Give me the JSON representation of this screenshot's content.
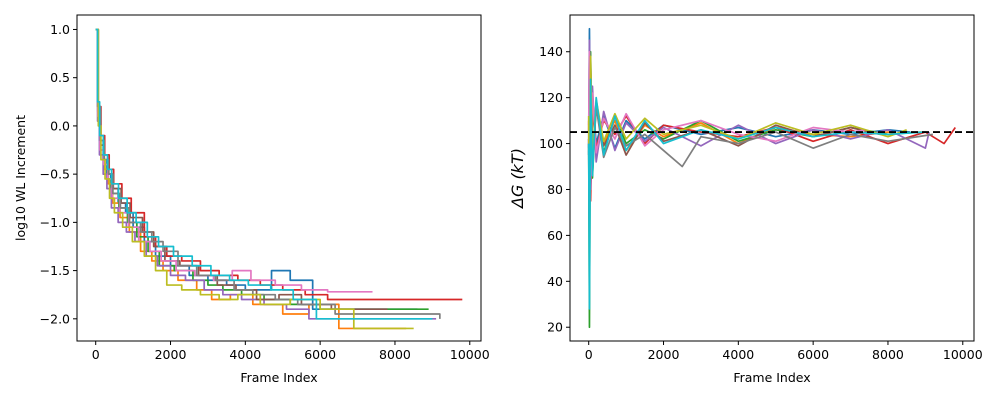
{
  "colors": [
    "#1f77b4",
    "#ff7f0e",
    "#2ca02c",
    "#d62728",
    "#9467bd",
    "#8c564b",
    "#e377c2",
    "#7f7f7f",
    "#bcbd22",
    "#17becf"
  ],
  "chart_data": [
    {
      "type": "line",
      "title": "",
      "xlabel": "Frame Index",
      "ylabel": "log10 WL Increment",
      "xlim": [
        -500,
        10300
      ],
      "ylim": [
        -2.23,
        1.15
      ],
      "xticks": [
        0,
        2000,
        4000,
        6000,
        8000,
        10000
      ],
      "yticks": [
        -2.0,
        -1.5,
        -1.0,
        -0.5,
        0.0,
        0.5,
        1.0
      ],
      "xtick_labels": [
        "0",
        "2000",
        "4000",
        "6000",
        "8000",
        "10000"
      ],
      "ytick_labels": [
        "−2.0",
        "−1.5",
        "−1.0",
        "−0.5",
        "0.0",
        "0.5",
        "1.0"
      ],
      "grid": false,
      "legend": "none",
      "step": true,
      "series": [
        {
          "x": [
            0,
            50,
            100,
            200,
            300,
            400,
            600,
            800,
            1000,
            1300,
            1600,
            2000,
            2500,
            3000,
            3500,
            4000,
            4700,
            5200,
            5800,
            8600
          ],
          "y": [
            1.0,
            0.2,
            -0.15,
            -0.35,
            -0.5,
            -0.65,
            -0.8,
            -0.9,
            -1.05,
            -1.2,
            -1.35,
            -1.45,
            -1.55,
            -1.6,
            -1.65,
            -1.7,
            -1.5,
            -1.6,
            -1.9,
            -1.9
          ]
        },
        {
          "x": [
            0,
            60,
            120,
            220,
            330,
            450,
            650,
            900,
            1200,
            1500,
            1800,
            2200,
            2700,
            3100,
            3600,
            4200,
            5000,
            5700,
            6500,
            8300
          ],
          "y": [
            1.0,
            0.1,
            -0.25,
            -0.45,
            -0.6,
            -0.8,
            -0.95,
            -1.1,
            -1.3,
            -1.4,
            -1.5,
            -1.6,
            -1.7,
            -1.8,
            -1.75,
            -1.85,
            -1.95,
            -1.85,
            -2.1,
            -2.1
          ]
        },
        {
          "x": [
            0,
            55,
            110,
            210,
            320,
            430,
            620,
            850,
            1100,
            1400,
            1700,
            2100,
            2600,
            3000,
            3400,
            3900,
            4500,
            5200,
            6000,
            8900
          ],
          "y": [
            1.0,
            0.15,
            -0.2,
            -0.4,
            -0.55,
            -0.7,
            -0.85,
            -1.0,
            -1.15,
            -1.3,
            -1.45,
            -1.5,
            -1.6,
            -1.65,
            -1.7,
            -1.75,
            -1.8,
            -1.85,
            -1.9,
            -1.9
          ]
        },
        {
          "x": [
            0,
            70,
            140,
            240,
            360,
            480,
            700,
            950,
            1300,
            1600,
            1900,
            2300,
            2800,
            3300,
            3800,
            4400,
            5000,
            5600,
            6200,
            9800
          ],
          "y": [
            1.0,
            0.2,
            -0.1,
            -0.3,
            -0.45,
            -0.6,
            -0.75,
            -0.9,
            -1.15,
            -1.25,
            -1.35,
            -1.4,
            -1.5,
            -1.55,
            -1.6,
            -1.65,
            -1.7,
            -1.75,
            -1.8,
            -1.8
          ]
        },
        {
          "x": [
            0,
            50,
            100,
            200,
            300,
            420,
            600,
            820,
            1050,
            1350,
            1650,
            2000,
            2400,
            2900,
            3400,
            3900,
            4500,
            5100,
            5700,
            9100
          ],
          "y": [
            1.0,
            0.05,
            -0.3,
            -0.5,
            -0.65,
            -0.85,
            -1.0,
            -1.1,
            -1.2,
            -1.35,
            -1.45,
            -1.55,
            -1.6,
            -1.7,
            -1.75,
            -1.8,
            -1.85,
            -1.9,
            -2.0,
            -2.0
          ]
        },
        {
          "x": [
            0,
            65,
            130,
            230,
            350,
            470,
            680,
            920,
            1250,
            1550,
            1850,
            2250,
            2750,
            3250,
            3750,
            4300,
            4900,
            5500,
            6300,
            7800
          ],
          "y": [
            1.0,
            0.15,
            -0.2,
            -0.35,
            -0.5,
            -0.65,
            -0.8,
            -0.95,
            -1.1,
            -1.25,
            -1.4,
            -1.45,
            -1.55,
            -1.65,
            -1.7,
            -1.8,
            -1.75,
            -1.85,
            -1.9,
            -1.9
          ]
        },
        {
          "x": [
            0,
            55,
            115,
            215,
            325,
            440,
            640,
            880,
            1150,
            1450,
            1750,
            2150,
            2650,
            3150,
            3650,
            4150,
            4800,
            5500,
            6200,
            7400
          ],
          "y": [
            1.0,
            0.1,
            -0.25,
            -0.4,
            -0.55,
            -0.75,
            -0.9,
            -1.05,
            -1.2,
            -1.3,
            -1.4,
            -1.5,
            -1.55,
            -1.6,
            -1.5,
            -1.6,
            -1.65,
            -1.7,
            -1.72,
            -1.72
          ]
        },
        {
          "x": [
            0,
            60,
            125,
            225,
            340,
            460,
            660,
            900,
            1200,
            1500,
            1800,
            2200,
            2700,
            3200,
            3700,
            4200,
            4800,
            5400,
            6400,
            9200
          ],
          "y": [
            1.0,
            0.2,
            -0.15,
            -0.35,
            -0.5,
            -0.7,
            -0.85,
            -1.0,
            -1.1,
            -1.2,
            -1.3,
            -1.45,
            -1.55,
            -1.6,
            -1.7,
            -1.75,
            -1.8,
            -1.85,
            -1.95,
            -2.0
          ]
        },
        {
          "x": [
            0,
            70,
            140,
            250,
            370,
            500,
            720,
            980,
            1300,
            1600,
            1900,
            2300,
            2800,
            3300,
            3800,
            4400,
            5200,
            6000,
            6900,
            8500
          ],
          "y": [
            1.0,
            0.0,
            -0.35,
            -0.55,
            -0.75,
            -0.9,
            -1.05,
            -1.2,
            -1.35,
            -1.5,
            -1.65,
            -1.7,
            -1.75,
            -1.8,
            -1.75,
            -1.85,
            -1.8,
            -1.9,
            -2.1,
            -2.1
          ]
        },
        {
          "x": [
            0,
            50,
            105,
            205,
            315,
            425,
            610,
            840,
            1080,
            1380,
            1680,
            2080,
            2580,
            3080,
            3580,
            4080,
            4680,
            5280,
            5900,
            9000
          ],
          "y": [
            1.0,
            0.25,
            -0.1,
            -0.3,
            -0.45,
            -0.6,
            -0.75,
            -0.9,
            -1.0,
            -1.15,
            -1.25,
            -1.35,
            -1.45,
            -1.55,
            -1.6,
            -1.65,
            -1.7,
            -1.8,
            -2.0,
            -2.0
          ]
        }
      ]
    },
    {
      "type": "line",
      "title": "",
      "xlabel": "Frame Index",
      "ylabel": "ΔG (kT)",
      "xlim": [
        -500,
        10300
      ],
      "ylim": [
        14,
        156
      ],
      "xticks": [
        0,
        2000,
        4000,
        6000,
        8000,
        10000
      ],
      "yticks": [
        20,
        40,
        60,
        80,
        100,
        120,
        140
      ],
      "xtick_labels": [
        "0",
        "2000",
        "4000",
        "6000",
        "8000",
        "10000"
      ],
      "ytick_labels": [
        "20",
        "40",
        "60",
        "80",
        "100",
        "120",
        "140"
      ],
      "grid": false,
      "legend": "none",
      "reference_line": {
        "y": 105,
        "style": "dashed",
        "color": "#000000"
      },
      "series": [
        {
          "x": [
            0,
            20,
            50,
            100,
            200,
            400,
            700,
            1000,
            1500,
            2000,
            3000,
            4000,
            5000,
            6000,
            7000,
            8000,
            8600
          ],
          "y": [
            95,
            150,
            90,
            120,
            100,
            112,
            98,
            110,
            102,
            108,
            104,
            107,
            103,
            106,
            104,
            106,
            105
          ]
        },
        {
          "x": [
            0,
            20,
            50,
            100,
            200,
            400,
            700,
            1000,
            1500,
            2000,
            3000,
            4000,
            5000,
            6000,
            7000,
            8000,
            8300
          ],
          "y": [
            110,
            60,
            130,
            95,
            115,
            100,
            110,
            97,
            108,
            103,
            109,
            100,
            107,
            104,
            103,
            105,
            104
          ]
        },
        {
          "x": [
            0,
            20,
            50,
            100,
            200,
            400,
            700,
            1000,
            1500,
            2000,
            3000,
            4000,
            5000,
            6000,
            7000,
            8000,
            8900
          ],
          "y": [
            100,
            20,
            140,
            85,
            118,
            96,
            112,
            100,
            106,
            102,
            110,
            101,
            106,
            103,
            107,
            104,
            105
          ]
        },
        {
          "x": [
            0,
            20,
            50,
            100,
            200,
            400,
            700,
            1000,
            1500,
            2000,
            3000,
            4000,
            5000,
            6000,
            7000,
            8000,
            9000,
            9500,
            9800
          ],
          "y": [
            105,
            130,
            75,
            115,
            98,
            110,
            104,
            112,
            100,
            108,
            105,
            103,
            107,
            101,
            106,
            100,
            105,
            100,
            107
          ]
        },
        {
          "x": [
            0,
            20,
            50,
            100,
            200,
            400,
            700,
            1000,
            1500,
            2000,
            3000,
            4000,
            5000,
            6000,
            7000,
            8000,
            9000,
            9100
          ],
          "y": [
            98,
            145,
            80,
            125,
            92,
            114,
            97,
            109,
            101,
            107,
            99,
            108,
            100,
            106,
            102,
            106,
            98,
            105
          ]
        },
        {
          "x": [
            0,
            20,
            50,
            100,
            200,
            400,
            700,
            1000,
            1500,
            2000,
            3000,
            4000,
            5000,
            6000,
            7000,
            7800
          ],
          "y": [
            102,
            70,
            135,
            90,
            117,
            99,
            108,
            95,
            109,
            101,
            106,
            99,
            108,
            103,
            107,
            104
          ]
        },
        {
          "x": [
            0,
            20,
            50,
            100,
            200,
            400,
            700,
            1000,
            1500,
            2000,
            3000,
            4000,
            5000,
            6000,
            7000,
            7400
          ],
          "y": [
            108,
            140,
            85,
            122,
            96,
            111,
            102,
            113,
            99,
            106,
            110,
            104,
            101,
            107,
            105,
            106
          ]
        },
        {
          "x": [
            0,
            20,
            50,
            100,
            200,
            400,
            700,
            1000,
            1500,
            2000,
            2500,
            3000,
            4000,
            5000,
            6000,
            7000,
            8000,
            9200
          ],
          "y": [
            97,
            55,
            128,
            88,
            116,
            94,
            107,
            99,
            104,
            97,
            90,
            103,
            100,
            105,
            98,
            104,
            101,
            104
          ]
        },
        {
          "x": [
            0,
            20,
            50,
            100,
            200,
            400,
            700,
            1000,
            1500,
            2000,
            3000,
            4000,
            5000,
            6000,
            7000,
            8000,
            8500
          ],
          "y": [
            112,
            65,
            138,
            94,
            119,
            101,
            113,
            102,
            111,
            104,
            108,
            102,
            109,
            104,
            108,
            103,
            106
          ]
        },
        {
          "x": [
            0,
            20,
            50,
            100,
            200,
            400,
            700,
            1000,
            1500,
            2000,
            3000,
            4000,
            5000,
            6000,
            7000,
            8000,
            9000
          ],
          "y": [
            100,
            28,
            128,
            86,
            120,
            95,
            112,
            97,
            110,
            100,
            106,
            102,
            107,
            103,
            105,
            104,
            105
          ]
        }
      ]
    }
  ]
}
